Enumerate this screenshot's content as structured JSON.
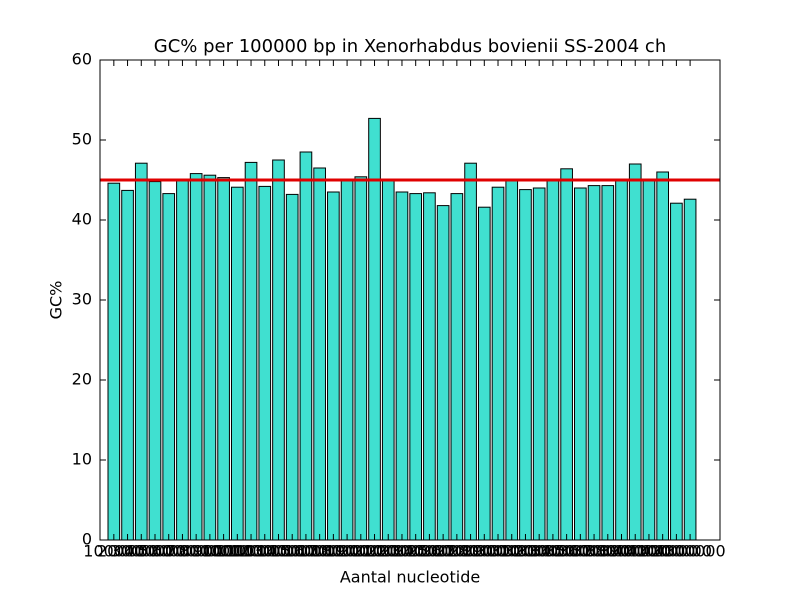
{
  "chart_data": {
    "type": "bar",
    "title": "GC% per 100000 bp in Xenorhabdus bovienii SS-2004 ch",
    "x_label": "Aantal nucleotide",
    "y_label": "GC%",
    "categories": [
      "100000",
      "200000",
      "300000",
      "400000",
      "500000",
      "600000",
      "700000",
      "800000",
      "900000",
      "1000000",
      "1100000",
      "1200000",
      "1300000",
      "1400000",
      "1500000",
      "1600000",
      "1700000",
      "1800000",
      "1900000",
      "2000000",
      "2100000",
      "2200000",
      "2300000",
      "2400000",
      "2500000",
      "2600000",
      "2700000",
      "2800000",
      "2900000",
      "3000000",
      "3100000",
      "3200000",
      "3300000",
      "3400000",
      "3500000",
      "3600000",
      "3700000",
      "3800000",
      "3900000",
      "4000000",
      "4100000",
      "4200000",
      "4300000"
    ],
    "values": [
      44.6,
      43.7,
      47.1,
      44.8,
      43.3,
      45.1,
      45.8,
      45.6,
      45.3,
      44.1,
      47.2,
      44.2,
      47.5,
      43.2,
      48.5,
      46.5,
      43.5,
      44.9,
      45.4,
      52.7,
      45.1,
      43.5,
      43.3,
      43.4,
      41.8,
      43.3,
      47.1,
      41.6,
      44.1,
      45.0,
      43.8,
      44.0,
      45.0,
      46.4,
      44.0,
      44.3,
      44.3,
      45.0,
      47.0,
      45.0,
      46.0,
      42.1,
      42.6
    ],
    "color": "#40e0d0",
    "reference_line": {
      "value": 45,
      "color": "#e00000"
    },
    "ylim": [
      0,
      60
    ],
    "yticks": [
      0,
      10,
      20,
      30,
      40,
      50,
      60
    ]
  }
}
